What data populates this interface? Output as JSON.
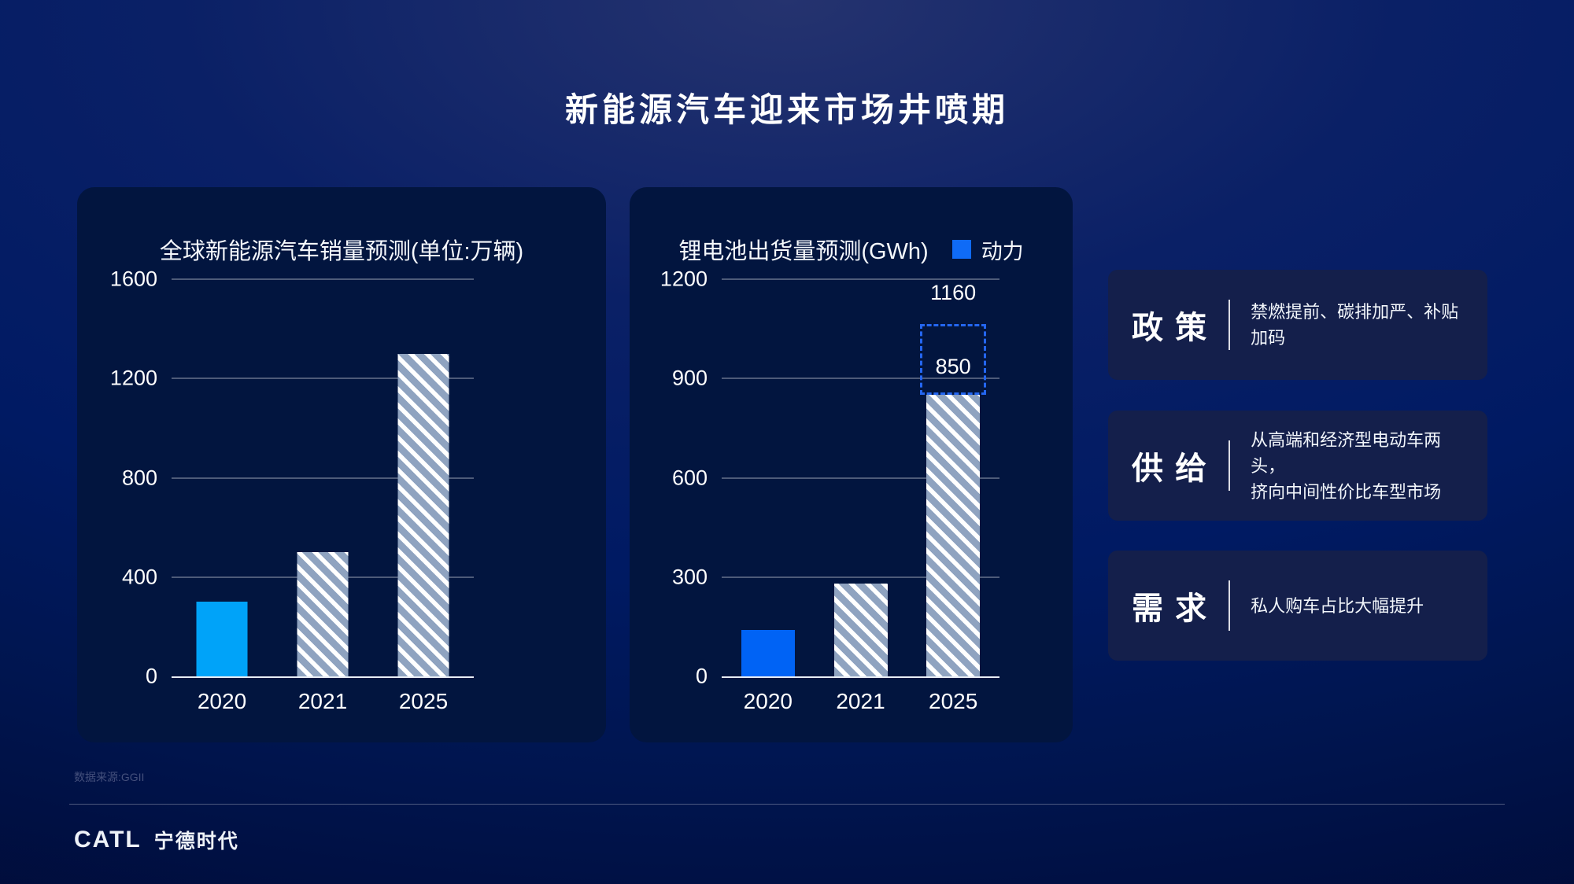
{
  "page": {
    "title": "新能源汽车迎来市场井喷期",
    "source_note": "数据来源:GGII",
    "footer_logo": {
      "latin": "CATL",
      "cn": "宁德时代"
    }
  },
  "colors": {
    "background_top": "#25336f",
    "background_bottom": "#010a35",
    "chart_card": "#02153f",
    "panel": "#141f4b",
    "gridline": "rgba(255,255,255,0.30)",
    "axis": "#e8edf5"
  },
  "chart_data": [
    {
      "type": "bar",
      "title": "全球新能源汽车销量预测(单位:万辆)",
      "categories": [
        "2020",
        "2021",
        "2025"
      ],
      "values": [
        300,
        500,
        1300
      ],
      "ylim": [
        0,
        1600
      ],
      "yticks": [
        1600,
        1200,
        800,
        400,
        0
      ],
      "styles": [
        "solid",
        "hatch",
        "hatch"
      ],
      "bar_color": "#00a3f9",
      "hatch": {
        "base": "#8fa3c0",
        "stripe": "#ffffff"
      },
      "grid": true,
      "legend_position": "none"
    },
    {
      "type": "bar",
      "title": "锂电池出货量预测(GWh)",
      "legend": [
        {
          "label": "动力",
          "color": "#0f6bf7"
        }
      ],
      "categories": [
        "2020",
        "2021",
        "2025"
      ],
      "values": [
        140,
        280,
        850
      ],
      "ylim": [
        0,
        1200
      ],
      "yticks": [
        1200,
        900,
        600,
        300,
        0
      ],
      "styles": [
        "solid",
        "hatch",
        "hatch"
      ],
      "bar_color": "#0063f5",
      "hatch": {
        "base": "#8fa3c0",
        "stripe": "#ffffff"
      },
      "grid": true,
      "legend_position": "top-right",
      "projection": {
        "category": "2025",
        "base": 850,
        "value": 1160,
        "base_label": "850",
        "top_label": "1160",
        "color": "#2466f0"
      }
    }
  ],
  "panels": [
    {
      "heading": "政 策",
      "desc": "禁燃提前、碳排加严、补贴加码"
    },
    {
      "heading": "供 给",
      "desc": "从高端和经济型电动车两头，\n挤向中间性价比车型市场"
    },
    {
      "heading": "需 求",
      "desc": "私人购车占比大幅提升"
    }
  ]
}
